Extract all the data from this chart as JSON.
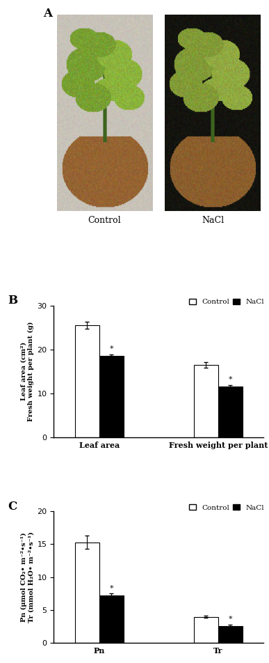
{
  "panel_A_caption": "A",
  "panel_B_caption": "B",
  "panel_C_caption": "C",
  "B_groups": [
    "Leaf area",
    "Fresh weight per plant"
  ],
  "B_control_values": [
    25.5,
    16.5
  ],
  "B_nacl_values": [
    18.5,
    11.5
  ],
  "B_control_errors": [
    0.8,
    0.6
  ],
  "B_nacl_errors": [
    0.4,
    0.4
  ],
  "B_ylim": [
    0,
    30
  ],
  "B_yticks": [
    0,
    10,
    20,
    30
  ],
  "B_ylabel_line1": "Leaf area (cm²)",
  "B_ylabel_line2": "Fresh weight per plant (g)",
  "C_groups": [
    "Pn",
    "Tr"
  ],
  "C_control_values": [
    15.3,
    4.0
  ],
  "C_nacl_values": [
    7.2,
    2.6
  ],
  "C_control_errors": [
    1.0,
    0.2
  ],
  "C_nacl_errors": [
    0.3,
    0.2
  ],
  "C_ylim": [
    0,
    20
  ],
  "C_yticks": [
    0,
    5,
    10,
    15,
    20
  ],
  "C_ylabel_line1": "Pn (μmol CO₂• m⁻²•s⁻¹)",
  "C_ylabel_line2": "Tr (mmol H₂O• m⁻²•s⁻¹)",
  "bar_width": 0.35,
  "control_color": "#ffffff",
  "nacl_color": "#000000",
  "bar_edgecolor": "#000000",
  "star_label": "*",
  "font_family": "DejaVu Serif"
}
